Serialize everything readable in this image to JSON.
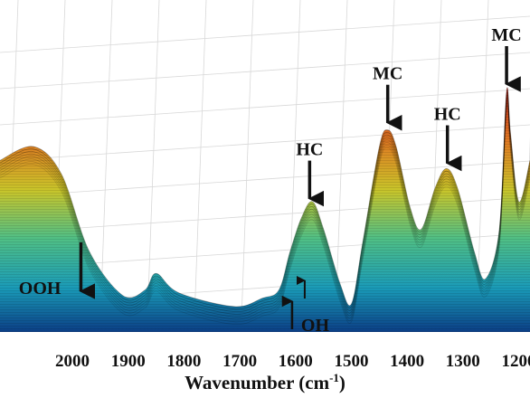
{
  "chart_data": {
    "type": "area",
    "title": "",
    "xlabel": {
      "text": "Wavenumber (cm",
      "sup": "-1",
      "close": ")"
    },
    "ylabel": "",
    "x_ticks": [
      "2000",
      "1900",
      "1800",
      "1700",
      "1600",
      "1500",
      "1400",
      "1300",
      "1200"
    ],
    "xlim": [
      2120,
      1170
    ],
    "grid": true,
    "series": [
      {
        "values": [
          [
            2120,
            0.55
          ],
          [
            2060,
            0.6
          ],
          [
            2010,
            0.5
          ],
          [
            1960,
            0.22
          ],
          [
            1900,
            0.06
          ],
          [
            1860,
            0.08
          ],
          [
            1840,
            0.14
          ],
          [
            1800,
            0.07
          ],
          [
            1700,
            0.02
          ],
          [
            1650,
            0.05
          ],
          [
            1620,
            0.08
          ],
          [
            1600,
            0.22
          ],
          [
            1580,
            0.34
          ],
          [
            1560,
            0.4
          ],
          [
            1540,
            0.3
          ],
          [
            1510,
            0.1
          ],
          [
            1490,
            0.03
          ],
          [
            1470,
            0.25
          ],
          [
            1440,
            0.6
          ],
          [
            1425,
            0.66
          ],
          [
            1410,
            0.6
          ],
          [
            1385,
            0.38
          ],
          [
            1365,
            0.3
          ],
          [
            1340,
            0.45
          ],
          [
            1320,
            0.52
          ],
          [
            1300,
            0.45
          ],
          [
            1270,
            0.22
          ],
          [
            1250,
            0.12
          ],
          [
            1225,
            0.3
          ],
          [
            1212,
            0.8
          ],
          [
            1205,
            0.65
          ],
          [
            1190,
            0.4
          ],
          [
            1170,
            0.55
          ]
        ]
      }
    ],
    "annotations": [
      {
        "text": "HC",
        "x": 1565,
        "direction": "down"
      },
      {
        "text": "MC",
        "x": 1425,
        "direction": "down"
      },
      {
        "text": "HC",
        "x": 1318,
        "direction": "down"
      },
      {
        "text": "MC",
        "x": 1212,
        "direction": "down"
      },
      {
        "text": "OH",
        "x": 1590,
        "direction": "up"
      },
      {
        "text": "OOH",
        "x": 1975,
        "direction": "down"
      }
    ]
  }
}
